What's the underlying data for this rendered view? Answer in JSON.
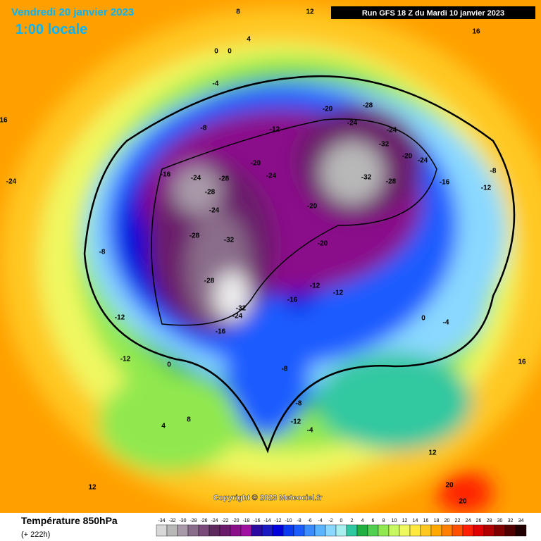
{
  "header": {
    "date": "Vendredi 20 janvier 2023",
    "time": "1:00 locale",
    "run": "Run GFS 18 Z du Mardi 10 janvier 2023"
  },
  "copyright": "Copyright © 2023 Meteociel.fr",
  "footer": {
    "title": "Température 850hPa",
    "lead": "(+ 222h)"
  },
  "map_labels": [
    -28,
    -24,
    -20,
    -24,
    -32,
    -20,
    -24,
    -28,
    -32,
    -20,
    -20,
    -20,
    -24,
    -16,
    -28,
    -24,
    -28,
    -24,
    -28,
    -32,
    -28,
    -32,
    -24,
    -16,
    -16,
    -12,
    -12,
    -12,
    -8,
    -4,
    -8,
    -12,
    -12,
    0,
    -8,
    -8,
    -12,
    -4,
    0,
    -4,
    4,
    8,
    12,
    16,
    16,
    20,
    20,
    12,
    16,
    -24,
    4,
    8,
    12,
    -12,
    -16,
    -8,
    0,
    0
  ],
  "colorbar": {
    "values": [
      -34,
      -32,
      -30,
      -28,
      -26,
      -24,
      -22,
      -20,
      -18,
      -16,
      -14,
      -12,
      -10,
      -8,
      -6,
      -4,
      -2,
      0,
      2,
      4,
      6,
      8,
      10,
      12,
      14,
      16,
      18,
      20,
      22,
      24,
      26,
      28,
      30,
      32,
      34
    ],
    "colors": [
      "#d8d8d8",
      "#b8b8b8",
      "#a89aa8",
      "#8a6d8a",
      "#7a4a7a",
      "#5e2a5e",
      "#6a1a6a",
      "#8a108a",
      "#a010a0",
      "#2a0aa0",
      "#1a1ac0",
      "#0000d8",
      "#0a3af0",
      "#1a5cff",
      "#3a8cff",
      "#5ab4ff",
      "#8ad8ff",
      "#a8f0f0",
      "#30c8a0",
      "#20b040",
      "#50d050",
      "#90e850",
      "#c8f860",
      "#f0f860",
      "#ffe840",
      "#ffc820",
      "#ffa800",
      "#ff8000",
      "#ff5000",
      "#ff2000",
      "#e00000",
      "#b00000",
      "#800000",
      "#500000",
      "#200000"
    ]
  }
}
